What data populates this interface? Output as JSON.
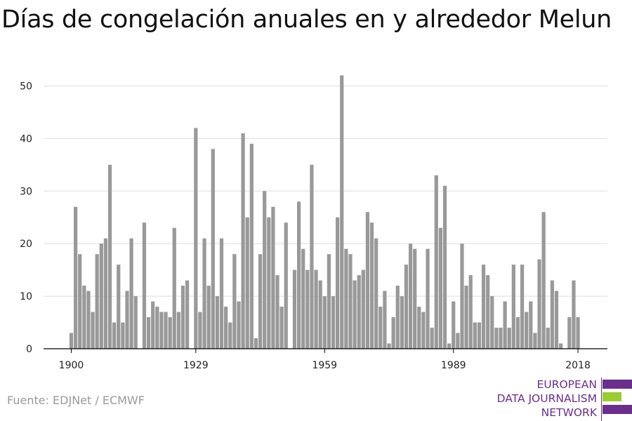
{
  "title": "Días de congelación anuales en y alrededor Melun",
  "source": "Fuente: EDJNet / ECMWF",
  "logo": {
    "lines": [
      "EUROPEAN",
      "DATA JOURNALISM",
      "NETWORK"
    ],
    "colors": {
      "purple": "#6a2e8c",
      "green": "#9acd32"
    }
  },
  "colors": {
    "bar": "#999999",
    "grid": "#dddddd",
    "axis": "#000000"
  },
  "chart_data": {
    "type": "bar",
    "title": "Días de congelación anuales en y alrededor Melun",
    "xlabel": "",
    "ylabel": "",
    "x": [
      1900,
      1901,
      1902,
      1903,
      1904,
      1905,
      1906,
      1907,
      1908,
      1909,
      1910,
      1911,
      1912,
      1913,
      1914,
      1915,
      1916,
      1917,
      1918,
      1919,
      1920,
      1921,
      1922,
      1923,
      1924,
      1925,
      1926,
      1927,
      1928,
      1929,
      1930,
      1931,
      1932,
      1933,
      1934,
      1935,
      1936,
      1937,
      1938,
      1939,
      1940,
      1941,
      1942,
      1943,
      1944,
      1945,
      1946,
      1947,
      1948,
      1949,
      1950,
      1951,
      1952,
      1953,
      1954,
      1955,
      1956,
      1957,
      1958,
      1959,
      1960,
      1961,
      1962,
      1963,
      1964,
      1965,
      1966,
      1967,
      1968,
      1969,
      1970,
      1971,
      1972,
      1973,
      1974,
      1975,
      1976,
      1977,
      1978,
      1979,
      1980,
      1981,
      1982,
      1983,
      1984,
      1985,
      1986,
      1987,
      1988,
      1989,
      1990,
      1991,
      1992,
      1993,
      1994,
      1995,
      1996,
      1997,
      1998,
      1999,
      2000,
      2001,
      2002,
      2003,
      2004,
      2005,
      2006,
      2007,
      2008,
      2009,
      2010,
      2011,
      2012,
      2013,
      2014,
      2015,
      2016,
      2017,
      2018
    ],
    "values": [
      3,
      27,
      18,
      12,
      11,
      7,
      18,
      20,
      21,
      35,
      5,
      16,
      5,
      11,
      21,
      10,
      0,
      24,
      6,
      9,
      8,
      7,
      7,
      6,
      23,
      7,
      12,
      13,
      0,
      42,
      7,
      21,
      12,
      38,
      10,
      21,
      8,
      5,
      18,
      9,
      41,
      25,
      39,
      2,
      18,
      30,
      25,
      27,
      14,
      8,
      24,
      0,
      15,
      28,
      19,
      15,
      35,
      15,
      13,
      10,
      18,
      10,
      25,
      52,
      19,
      18,
      13,
      14,
      15,
      26,
      24,
      21,
      8,
      11,
      1,
      6,
      12,
      10,
      16,
      20,
      19,
      8,
      7,
      19,
      4,
      33,
      23,
      31,
      1,
      9,
      3,
      20,
      12,
      14,
      5,
      5,
      16,
      14,
      10,
      4,
      4,
      9,
      4,
      16,
      6,
      16,
      7,
      9,
      3,
      17,
      26,
      4,
      13,
      11,
      1,
      0,
      6,
      13,
      6
    ],
    "xticks": [
      1900,
      1929,
      1959,
      1989,
      2018
    ],
    "yticks": [
      0,
      10,
      20,
      30,
      40,
      50
    ],
    "ylim": [
      0,
      53
    ],
    "grid": true,
    "legend": "none"
  }
}
